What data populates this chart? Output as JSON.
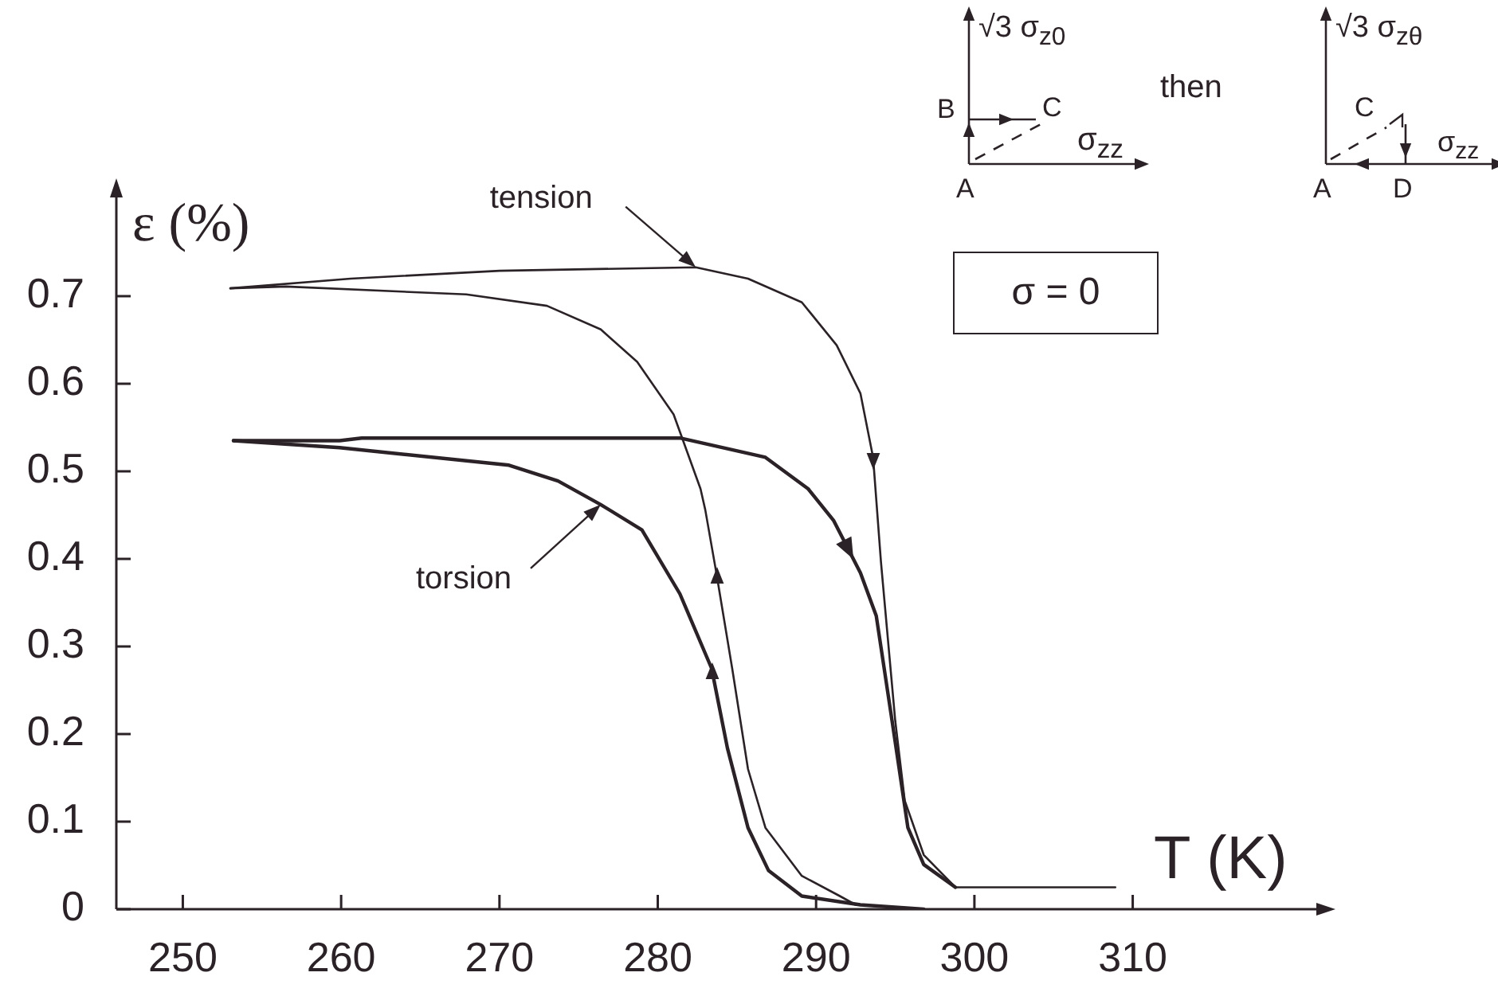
{
  "chart_data": {
    "type": "line",
    "xlabel": "T (K)",
    "ylabel": "ε (%)",
    "xlim": [
      245.8,
      322
    ],
    "xticks": [
      250,
      260,
      270,
      280,
      290,
      300,
      310
    ],
    "ylim": [
      0,
      0.82
    ],
    "yticks": [
      0,
      0.1,
      0.2,
      0.3,
      0.4,
      0.5,
      0.6,
      0.7
    ],
    "marker": "none",
    "line_style": "solid",
    "series": [
      {
        "color": "#2a2226",
        "x": [
          253.0,
          260.6,
          270.0,
          282.4,
          285.7,
          289.1,
          291.3,
          292.8,
          293.6,
          294.1,
          295.0,
          295.6,
          296.8,
          298.8,
          308.9
        ],
        "values": [
          0.709,
          0.72,
          0.729,
          0.733,
          0.72,
          0.693,
          0.644,
          0.589,
          0.516,
          0.396,
          0.215,
          0.124,
          0.062,
          0.025,
          0.025
        ]
      },
      {
        "color": "#2a2226",
        "x": [
          253.0,
          256.5,
          267.9,
          273.0,
          276.4,
          278.7,
          281.0,
          282.7,
          283.0,
          283.7,
          284.7,
          285.7,
          286.8,
          289.1,
          291.5,
          292.5
        ],
        "values": [
          0.709,
          0.711,
          0.702,
          0.689,
          0.662,
          0.625,
          0.565,
          0.48,
          0.456,
          0.384,
          0.275,
          0.16,
          0.093,
          0.038,
          0.015,
          0.005
        ]
      },
      {
        "color": "#2a2226",
        "x": [
          253.2,
          259.9,
          261.3,
          281.4,
          286.8,
          289.5,
          291.1,
          292.8,
          293.8,
          294.8,
          295.8,
          296.8,
          298.8
        ],
        "values": [
          0.535,
          0.535,
          0.538,
          0.538,
          0.516,
          0.48,
          0.444,
          0.384,
          0.335,
          0.215,
          0.093,
          0.051,
          0.025
        ]
      },
      {
        "color": "#2a2226",
        "x": [
          253.2,
          259.9,
          270.6,
          273.7,
          276.4,
          279.0,
          281.4,
          283.4,
          284.4,
          285.7,
          287.0,
          289.1,
          292.8,
          296.8
        ],
        "values": [
          0.535,
          0.527,
          0.507,
          0.489,
          0.462,
          0.433,
          0.36,
          0.275,
          0.184,
          0.093,
          0.044,
          0.015,
          0.005,
          0.0
        ]
      }
    ],
    "annotations": [
      {
        "text": "tension",
        "x": 282.4,
        "y": 0.733
      },
      {
        "text": "torsion",
        "x": 276.4,
        "y": 0.462
      },
      "σ = 0",
      "√3 σ$_{z0}$",
      "σ$_{zz}$",
      "A",
      "B",
      "C",
      "then",
      "√3 σ$_{zθ}$",
      "σ$_{zz}$",
      "A",
      "C",
      "D"
    ]
  }
}
